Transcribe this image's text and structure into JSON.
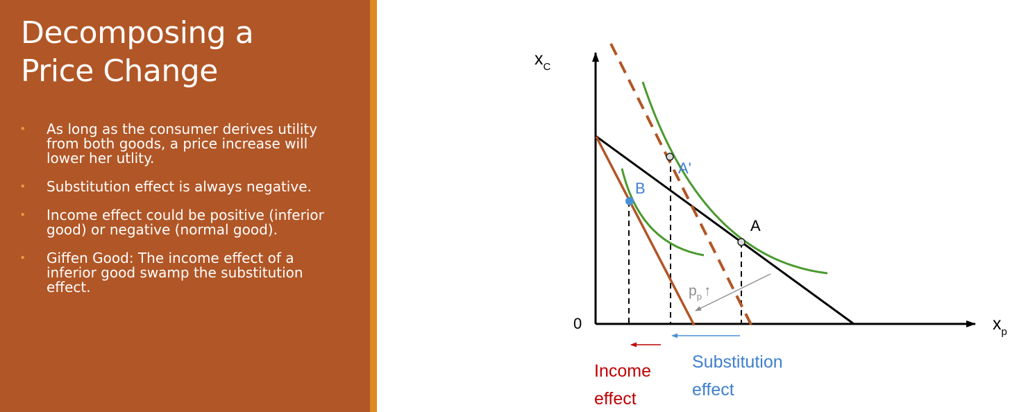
{
  "title": {
    "line1": "Decomposing a",
    "line2": "Price Change"
  },
  "bullets": [
    "As long as the consumer derives utility from both goods, a price increase will lower her utlity.",
    "Substitution effect is always negative.",
    "Income effect could be positive (inferior good) or negative (normal good).",
    "Giffen Good: The income effect of a inferior good swamp the substitution effect."
  ],
  "diagram": {
    "y_axis": {
      "main": "x",
      "sub": "C"
    },
    "x_axis": {
      "main": "x",
      "sub": "p"
    },
    "origin": "0",
    "points": {
      "A": "A",
      "A_prime": "A'",
      "B": "B"
    },
    "price_label": {
      "main": "p",
      "sub": "p",
      "arrow": "↑"
    },
    "income_effect": {
      "line1": "Income",
      "line2": "effect"
    },
    "substitution_effect": {
      "line1": "Substitution",
      "line2": "effect"
    },
    "colors": {
      "budget_line": "#000000",
      "new_budget": "#b15626",
      "indifference": "#4a9a2e",
      "point_B": "#4a90d9",
      "label_blue": "#3f7fcf",
      "income_red": "#c00000"
    }
  }
}
